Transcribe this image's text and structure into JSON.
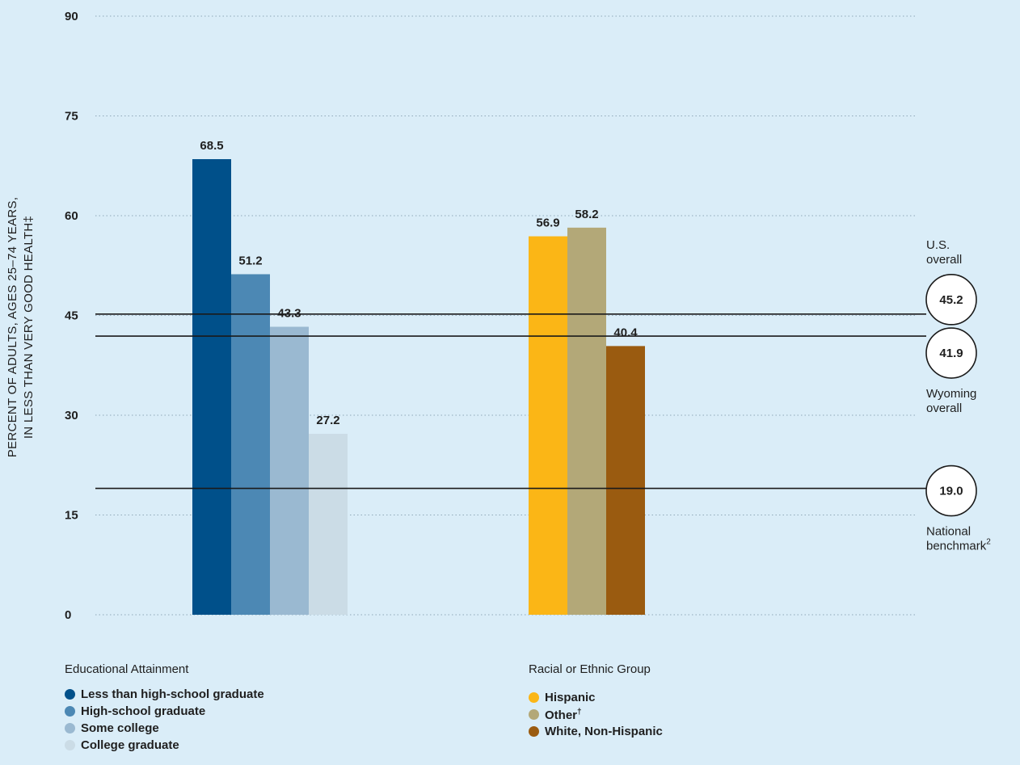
{
  "chart_data": {
    "type": "bar",
    "ylabel_line1": "PERCENT OF ADULTS, AGES 25–74 YEARS,",
    "ylabel_line2": "IN LESS THAN VERY GOOD HEALTH‡",
    "ylim": [
      0,
      90
    ],
    "yticks": [
      "0",
      "15",
      "30",
      "45",
      "60",
      "75",
      "90"
    ],
    "groups": [
      {
        "title": "Educational Attainment",
        "series": [
          {
            "name": "Less than high-school graduate",
            "value": 68.5,
            "label": "68.5",
            "color": "#00508a"
          },
          {
            "name": "High-school graduate",
            "value": 51.2,
            "label": "51.2",
            "color": "#4c88b4"
          },
          {
            "name": "Some college",
            "value": 43.3,
            "label": "43.3",
            "color": "#9ab9d1"
          },
          {
            "name": "College graduate",
            "value": 27.2,
            "label": "27.2",
            "color": "#cbdce6"
          }
        ]
      },
      {
        "title": "Racial or Ethnic Group",
        "series": [
          {
            "name": "Hispanic",
            "value": 56.9,
            "label": "56.9",
            "color": "#fbb616"
          },
          {
            "name": "Other",
            "sup": "†",
            "value": 58.2,
            "label": "58.2",
            "color": "#b3a878"
          },
          {
            "name": "White, Non-Hispanic",
            "value": 40.4,
            "label": "40.4",
            "color": "#9a5b10"
          }
        ]
      }
    ],
    "reference_lines": [
      {
        "value": 45.2,
        "label": "45.2",
        "note_lines": [
          "U.S.",
          "overall"
        ],
        "note_position": "above",
        "note_sup": ""
      },
      {
        "value": 41.9,
        "label": "41.9",
        "note_lines": [
          "Wyoming",
          "overall"
        ],
        "note_position": "below",
        "note_sup": ""
      },
      {
        "value": 19.0,
        "label": "19.0",
        "note_lines": [
          "National",
          "benchmark"
        ],
        "note_position": "below",
        "note_sup": "2"
      }
    ],
    "grid": "dotted horizontal",
    "legend_position": "bottom"
  }
}
